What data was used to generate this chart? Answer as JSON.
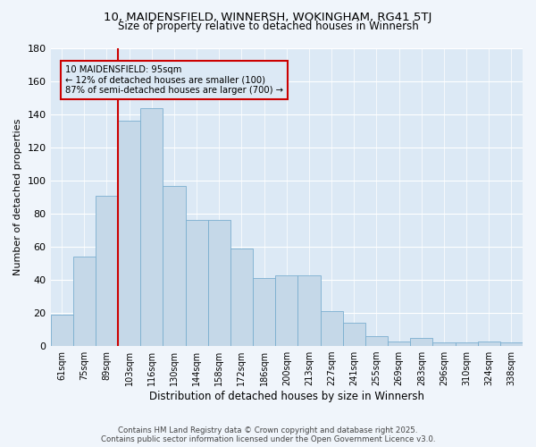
{
  "title": "10, MAIDENSFIELD, WINNERSH, WOKINGHAM, RG41 5TJ",
  "subtitle": "Size of property relative to detached houses in Winnersh",
  "xlabel": "Distribution of detached houses by size in Winnersh",
  "ylabel": "Number of detached properties",
  "bar_labels": [
    "61sqm",
    "75sqm",
    "89sqm",
    "103sqm",
    "116sqm",
    "130sqm",
    "144sqm",
    "158sqm",
    "172sqm",
    "186sqm",
    "200sqm",
    "213sqm",
    "227sqm",
    "241sqm",
    "255sqm",
    "269sqm",
    "283sqm",
    "296sqm",
    "310sqm",
    "324sqm",
    "338sqm"
  ],
  "bar_values": [
    19,
    54,
    91,
    136,
    144,
    97,
    76,
    76,
    59,
    41,
    43,
    43,
    21,
    14,
    6,
    3,
    5,
    2,
    2,
    3,
    2
  ],
  "bar_color": "#c5d8e8",
  "bar_edgecolor": "#7aaecf",
  "vline_color": "#cc0000",
  "annotation_text": "10 MAIDENSFIELD: 95sqm\n← 12% of detached houses are smaller (100)\n87% of semi-detached houses are larger (700) →",
  "annotation_box_color": "#cc0000",
  "ylim": [
    0,
    180
  ],
  "yticks": [
    0,
    20,
    40,
    60,
    80,
    100,
    120,
    140,
    160,
    180
  ],
  "footer_line1": "Contains HM Land Registry data © Crown copyright and database right 2025.",
  "footer_line2": "Contains public sector information licensed under the Open Government Licence v3.0.",
  "bg_color": "#dce9f5",
  "plot_bg_color": "#dce9f5",
  "figsize": [
    6.0,
    5.0
  ],
  "dpi": 100
}
